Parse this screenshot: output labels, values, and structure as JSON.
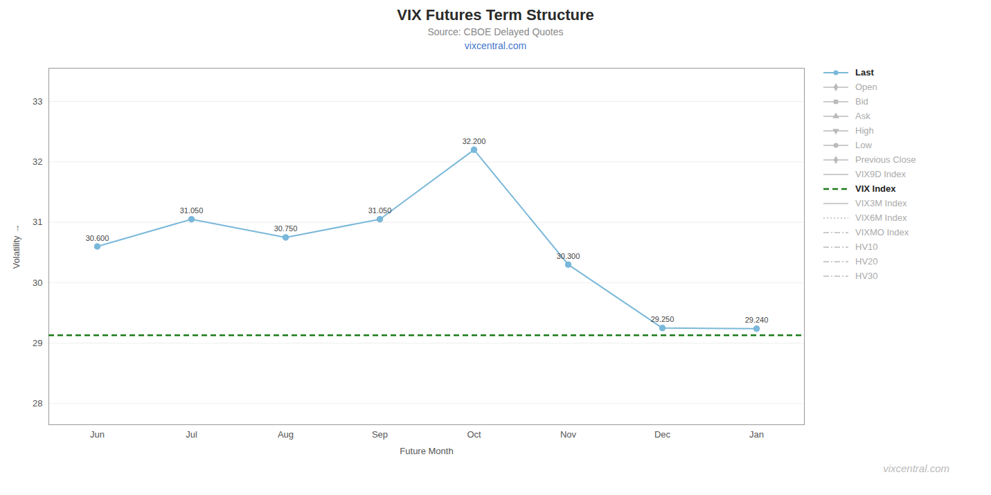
{
  "chart_data": {
    "type": "line",
    "title": "VIX Futures Term Structure",
    "subtitle": "Source: CBOE Delayed Quotes",
    "annotations": [
      {
        "text": "vixcentral.com",
        "color": "#4477cc"
      },
      {
        "text": "vixcentral.com"
      }
    ],
    "xlabel": "Future Month",
    "ylabel": "Volatility",
    "categories": [
      "Jun",
      "Jul",
      "Aug",
      "Sep",
      "Oct",
      "Nov",
      "Dec",
      "Jan"
    ],
    "series": [
      {
        "name": "Last",
        "color": "#7ab8d9",
        "marker": "circle",
        "line_style": "solid",
        "values": [
          30.6,
          31.05,
          30.75,
          31.05,
          32.2,
          30.3,
          29.25,
          29.24
        ],
        "value_labels": [
          "30.600",
          "31.050",
          "30.750",
          "31.050",
          "32.200",
          "30.300",
          "29.250",
          "29.240"
        ]
      },
      {
        "name": "Open",
        "color": "#bbbbbb",
        "marker": "diamond",
        "line_style": "solid",
        "values": [
          null,
          null,
          null,
          null,
          null,
          null,
          null,
          null
        ]
      },
      {
        "name": "Bid",
        "color": "#bbbbbb",
        "marker": "square",
        "line_style": "solid",
        "values": [
          null,
          null,
          null,
          null,
          null,
          null,
          null,
          null
        ]
      },
      {
        "name": "Ask",
        "color": "#bbbbbb",
        "marker": "triangle-up",
        "line_style": "solid",
        "values": [
          null,
          null,
          null,
          null,
          null,
          null,
          null,
          null
        ]
      },
      {
        "name": "High",
        "color": "#bbbbbb",
        "marker": "triangle-down",
        "line_style": "solid",
        "values": [
          null,
          null,
          null,
          null,
          null,
          null,
          null,
          null
        ]
      },
      {
        "name": "Low",
        "color": "#bbbbbb",
        "marker": "circle",
        "line_style": "solid",
        "values": [
          null,
          null,
          null,
          null,
          null,
          null,
          null,
          null
        ]
      },
      {
        "name": "Previous Close",
        "color": "#bbbbbb",
        "marker": "diamond",
        "line_style": "solid",
        "values": [
          null,
          null,
          null,
          null,
          null,
          null,
          null,
          null
        ]
      },
      {
        "name": "VIX9D Index",
        "color": "#bbbbbb",
        "line_style": "solid",
        "values": [
          null,
          null,
          null,
          null,
          null,
          null,
          null,
          null
        ]
      },
      {
        "name": "VIX Index",
        "type": "hline",
        "color": "#1a7a1a",
        "line_style": "dashed",
        "value": 29.13
      },
      {
        "name": "VIX3M Index",
        "color": "#bbbbbb",
        "line_style": "solid",
        "values": [
          null,
          null,
          null,
          null,
          null,
          null,
          null,
          null
        ]
      },
      {
        "name": "VIX6M Index",
        "color": "#bbbbbb",
        "line_style": "dotted",
        "values": [
          null,
          null,
          null,
          null,
          null,
          null,
          null,
          null
        ]
      },
      {
        "name": "VIXMO Index",
        "color": "#bbbbbb",
        "line_style": "dashdot",
        "values": [
          null,
          null,
          null,
          null,
          null,
          null,
          null,
          null
        ]
      },
      {
        "name": "HV10",
        "color": "#bbbbbb",
        "line_style": "dashdot",
        "values": [
          null,
          null,
          null,
          null,
          null,
          null,
          null,
          null
        ]
      },
      {
        "name": "HV20",
        "color": "#bbbbbb",
        "line_style": "dashdot",
        "values": [
          null,
          null,
          null,
          null,
          null,
          null,
          null,
          null
        ]
      },
      {
        "name": "HV30",
        "color": "#bbbbbb",
        "line_style": "dashdot",
        "values": [
          null,
          null,
          null,
          null,
          null,
          null,
          null,
          null
        ]
      }
    ],
    "ylim": [
      27.65,
      33.55
    ],
    "yticks": [
      28,
      29,
      30,
      31,
      32,
      33
    ],
    "grid": true,
    "data_labels": true,
    "legend": "right"
  }
}
